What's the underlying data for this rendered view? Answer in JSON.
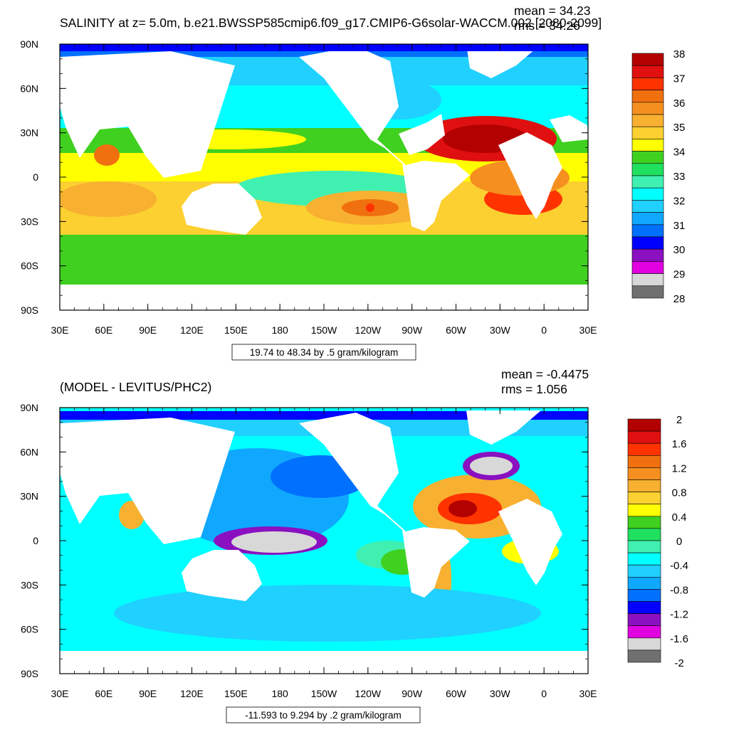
{
  "panels": [
    {
      "title": "SALINITY at z=   5.0m, b.e21.BWSSP585cmip6.f09_g17.CMIP6-G6solar-WACCM.002 [2080-2099]",
      "mean_text": "mean = 34.23",
      "rms_text": "rms = 34.26",
      "range_text": "19.74 to 48.34 by .5 gram/kilogram",
      "colorbar": {
        "labels": [
          "38",
          "37",
          "36",
          "35",
          "34",
          "33",
          "32",
          "31",
          "30",
          "29",
          "28"
        ],
        "colors": [
          "#b30000",
          "#e01010",
          "#ff3300",
          "#f07010",
          "#f59020",
          "#f8b030",
          "#fcd030",
          "#ffff00",
          "#40d020",
          "#20e060",
          "#40f0b0",
          "#00ffff",
          "#20d0ff",
          "#10a8ff",
          "#0070ff",
          "#0000ff",
          "#8a10c0",
          "#e000e0",
          "#d8d8d8",
          "#707070"
        ]
      }
    },
    {
      "title": "(MODEL - LEVITUS/PHC2)",
      "mean_text": "mean = -0.4475",
      "rms_text": "rms = 1.056",
      "range_text": "-11.593 to 9.294 by .2 gram/kilogram",
      "colorbar": {
        "labels": [
          "2",
          "1.6",
          "1.2",
          "0.8",
          "0.4",
          "0",
          "-0.4",
          "-0.8",
          "-1.2",
          "-1.6",
          "-2"
        ],
        "colors": [
          "#b30000",
          "#e01010",
          "#ff3300",
          "#f07010",
          "#f59020",
          "#f8b030",
          "#fcd030",
          "#ffff00",
          "#40d020",
          "#20e060",
          "#40f0b0",
          "#00ffff",
          "#20d0ff",
          "#10a8ff",
          "#0070ff",
          "#0000ff",
          "#8a10c0",
          "#e000e0",
          "#d8d8d8",
          "#707070"
        ]
      }
    }
  ],
  "axes": {
    "lon_labels": [
      "30E",
      "60E",
      "90E",
      "120E",
      "150E",
      "180",
      "150W",
      "120W",
      "90W",
      "60W",
      "30W",
      "0",
      "30E"
    ],
    "lat_labels": [
      "90N",
      "60N",
      "30N",
      "0",
      "30S",
      "60S",
      "90S"
    ]
  }
}
